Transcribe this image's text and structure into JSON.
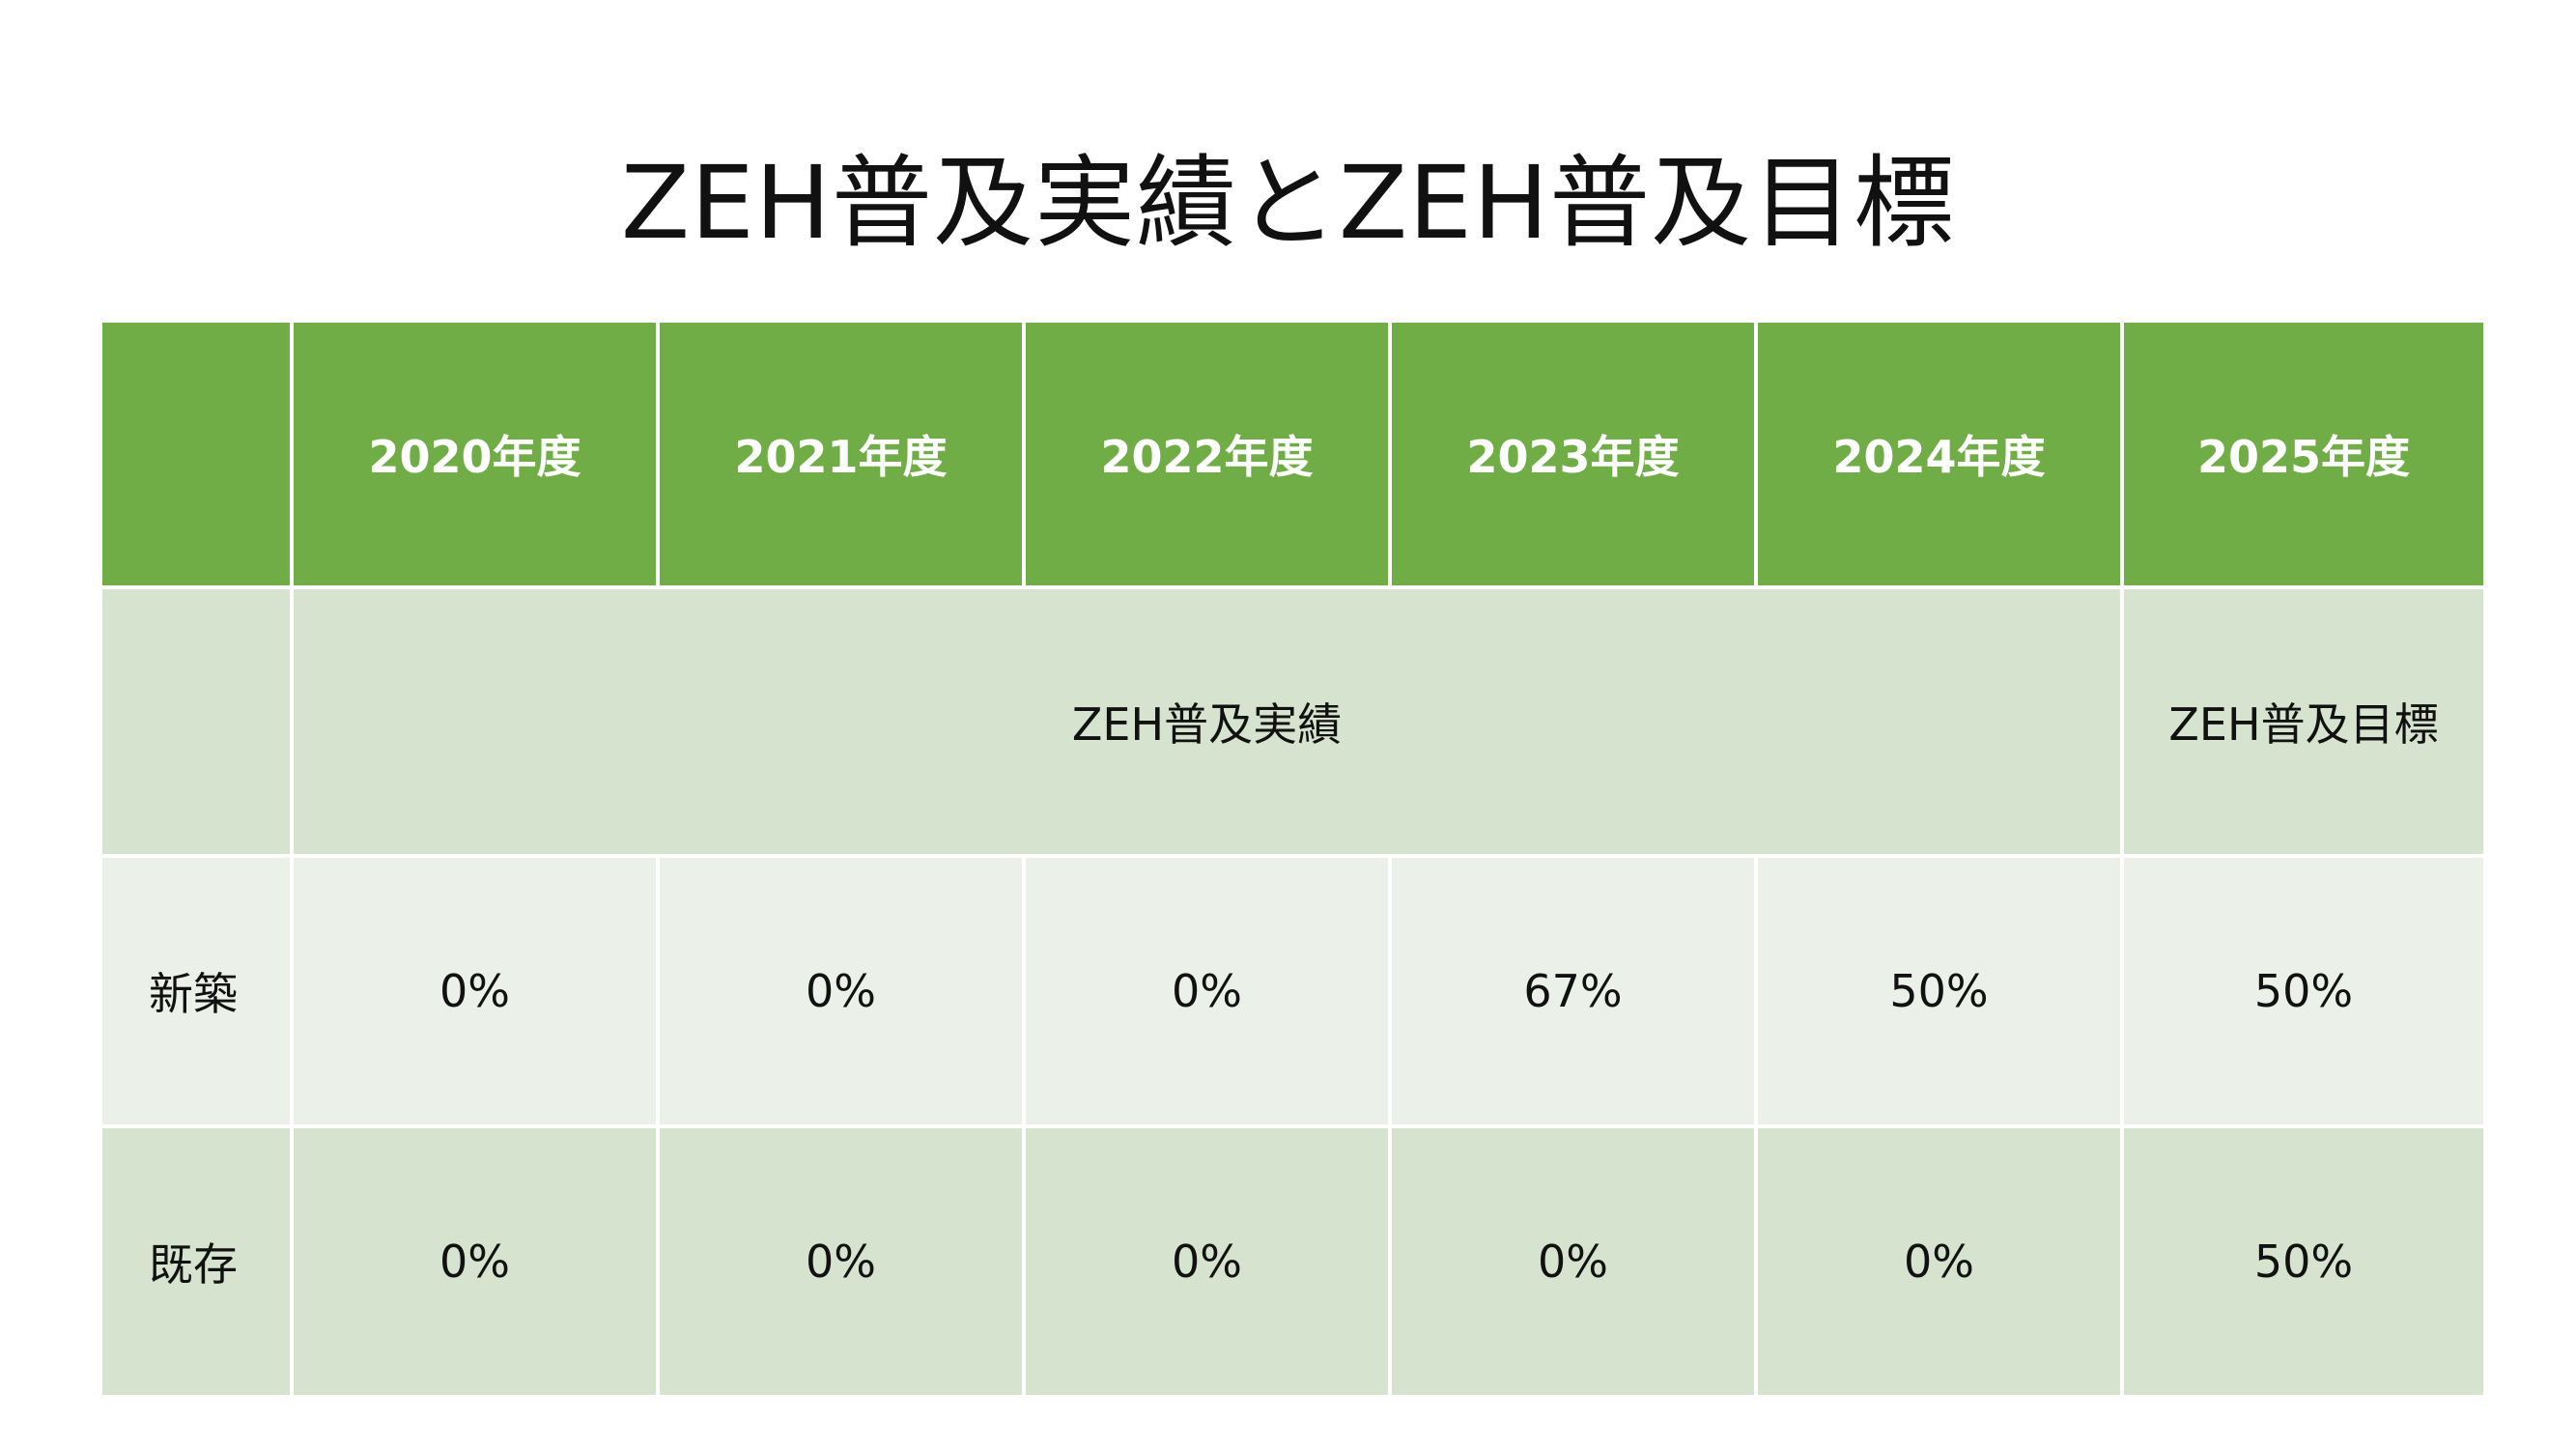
{
  "title": "ZEH普及実績とZEH普及目標",
  "table": {
    "corner": "",
    "years": [
      "2020年度",
      "2021年度",
      "2022年度",
      "2023年度",
      "2024年度",
      "2025年度"
    ],
    "band": {
      "label": "",
      "actual": "ZEH普及実績",
      "target": "ZEH普及目標"
    },
    "rows": [
      {
        "label": "新築",
        "values": [
          "0%",
          "0%",
          "0%",
          "67%",
          "50%",
          "50%"
        ]
      },
      {
        "label": "既存",
        "values": [
          "0%",
          "0%",
          "0%",
          "0%",
          "0%",
          "50%"
        ]
      }
    ]
  },
  "colors": {
    "header": "#70ad47",
    "band": "#d6e3cf",
    "row_light": "#ebf0e8",
    "row_dark": "#d6e3cf"
  }
}
